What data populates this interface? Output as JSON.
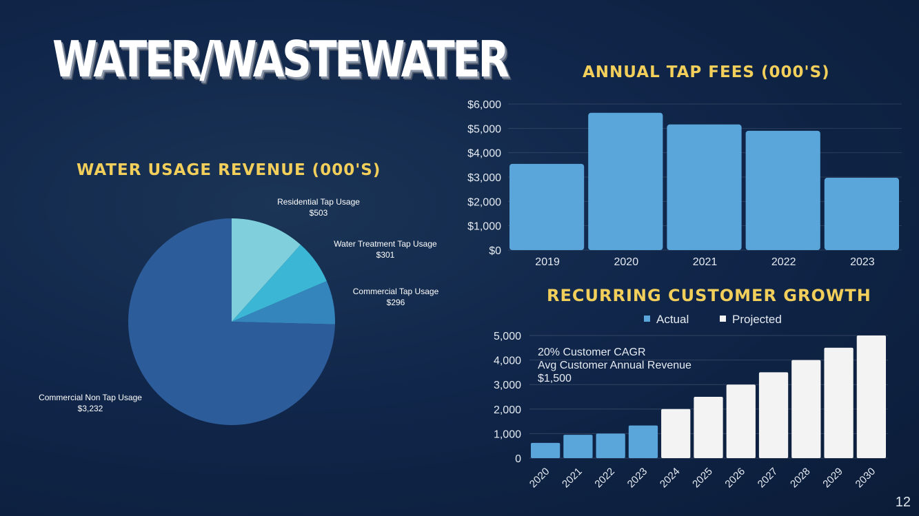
{
  "slide": {
    "title": "WATER/WASTEWATER",
    "page_number": "12"
  },
  "chart_data": [
    {
      "type": "pie",
      "title": "WATER USAGE REVENUE (000'S)",
      "slices": [
        {
          "label": "Residential Tap Usage",
          "value": 503,
          "value_label": "$503",
          "color": "#7fd0dc"
        },
        {
          "label": "Water Treatment Tap Usage",
          "value": 301,
          "value_label": "$301",
          "color": "#3cb6d5"
        },
        {
          "label": "Commercial Tap Usage",
          "value": 296,
          "value_label": "$296",
          "color": "#3585bd"
        },
        {
          "label": "Commercial Non Tap Usage",
          "value": 3232,
          "value_label": "$3,232",
          "color": "#2d5c9b"
        }
      ]
    },
    {
      "type": "bar",
      "title": "ANNUAL TAP FEES (000'S)",
      "categories": [
        "2019",
        "2020",
        "2021",
        "2022",
        "2023"
      ],
      "values": [
        3540,
        5640,
        5160,
        4900,
        2970
      ],
      "ylim": [
        0,
        6000
      ],
      "yticks": [
        "$0",
        "$1,000",
        "$2,000",
        "$3,000",
        "$4,000",
        "$5,000",
        "$6,000"
      ],
      "color": "#5aa6db"
    },
    {
      "type": "bar",
      "title": "RECURRING CUSTOMER GROWTH",
      "categories": [
        "2020",
        "2021",
        "2022",
        "2023",
        "2024",
        "2025",
        "2026",
        "2027",
        "2028",
        "2029",
        "2030"
      ],
      "series": [
        {
          "name": "Actual",
          "color": "#5aa6db",
          "values": [
            620,
            950,
            1000,
            1330,
            null,
            null,
            null,
            null,
            null,
            null,
            null
          ]
        },
        {
          "name": "Projected",
          "color": "#f3f3f3",
          "values": [
            null,
            null,
            null,
            null,
            2000,
            2500,
            3000,
            3500,
            4000,
            4500,
            5000
          ]
        }
      ],
      "ylim": [
        0,
        5000
      ],
      "yticks": [
        "0",
        "1,000",
        "2,000",
        "3,000",
        "4,000",
        "5,000"
      ],
      "legend": "top-center",
      "annotation": [
        "20% Customer CAGR",
        "Avg Customer Annual Revenue",
        "$1,500"
      ]
    }
  ]
}
